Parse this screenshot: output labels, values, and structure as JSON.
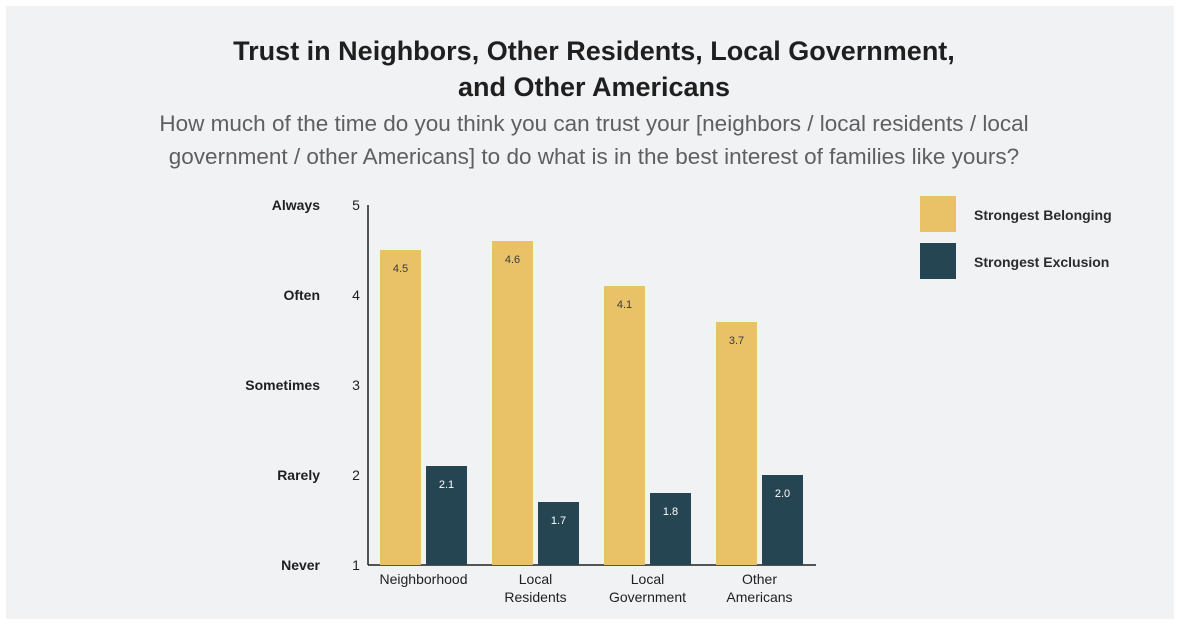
{
  "title_line1": "Trust in Neighbors, Other Residents, Local Government,",
  "title_line2": "and Other Americans",
  "subtitle_line1": "How much of the time do you think you can trust your [neighbors / local residents / local",
  "subtitle_line2": "government / other Americans] to do what is in the best interest of families like yours?",
  "colors": {
    "belonging": "#e9c268",
    "exclusion": "#264552",
    "background": "#f1f2f4"
  },
  "chart_data": {
    "type": "bar",
    "categories": [
      [
        "Neighborhood"
      ],
      [
        "Local",
        "Residents"
      ],
      [
        "Local",
        "Government"
      ],
      [
        "Other",
        "Americans"
      ]
    ],
    "series": [
      {
        "name": "Strongest Belonging",
        "values": [
          4.5,
          4.6,
          4.1,
          3.7
        ]
      },
      {
        "name": "Strongest Exclusion",
        "values": [
          2.1,
          1.7,
          1.8,
          2.0
        ]
      }
    ],
    "ylim": [
      1,
      5
    ],
    "yticks": [
      1,
      2,
      3,
      4,
      5
    ],
    "ytick_labels": [
      "Never",
      "Rarely",
      "Sometimes",
      "Often",
      "Always"
    ],
    "value_labels": [
      [
        "4.5",
        "4.6",
        "4.1",
        "3.7"
      ],
      [
        "2.1",
        "1.7",
        "1.8",
        "2.0"
      ]
    ],
    "legend_position": "top-right",
    "grid": false
  }
}
